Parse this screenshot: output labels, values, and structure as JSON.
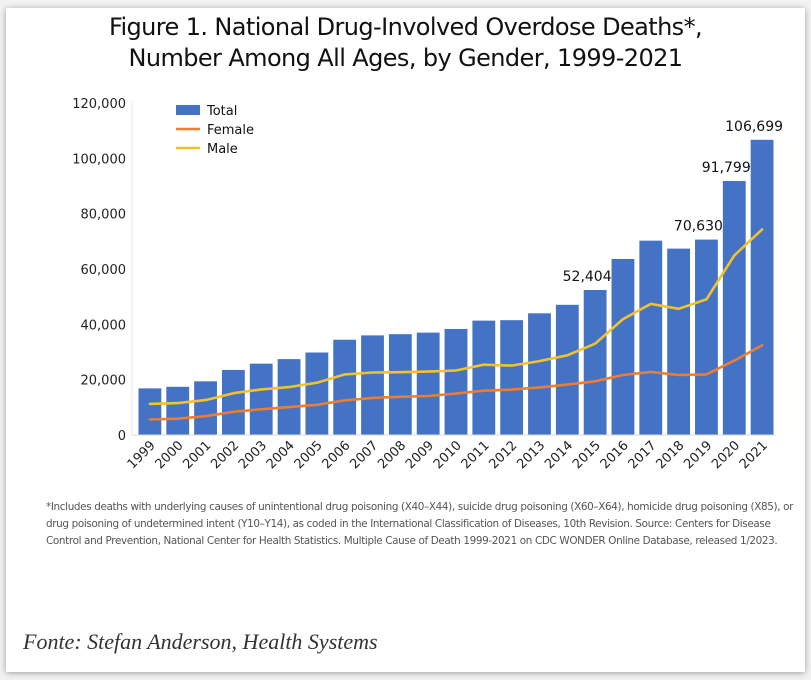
{
  "figure": {
    "title_line1": "Figure 1. National Drug-Involved Overdose Deaths*,",
    "title_line2": "Number Among All Ages, by Gender, 1999-2021",
    "footnote": "*Includes deaths with underlying causes of unintentional drug poisoning (X40–X44), suicide drug poisoning (X60–X64), homicide drug poisoning (X85), or drug poisoning of undetermined intent (Y10–Y14), as coded in the International Classification of Diseases, 10th Revision. Source: Centers for Disease Control and Prevention, National Center for Health Statistics. Multiple Cause of Death 1999-2021 on CDC WONDER Online Database, released 1/2023.",
    "source_caption": "Fonte: Stefan Anderson, Health Systems"
  },
  "chart_data": {
    "type": "bar",
    "title": "Figure 1. National Drug-Involved Overdose Deaths*, Number Among All Ages, by Gender, 1999-2021",
    "xlabel": "",
    "ylabel": "",
    "ylim": [
      0,
      120000
    ],
    "yticks": [
      0,
      20000,
      40000,
      60000,
      80000,
      100000,
      120000
    ],
    "ytick_labels": [
      "0",
      "20,000",
      "40,000",
      "60,000",
      "80,000",
      "100,000",
      "120,000"
    ],
    "grid": false,
    "legend_position": "top-left",
    "categories": [
      "1999",
      "2000",
      "2001",
      "2002",
      "2003",
      "2004",
      "2005",
      "2006",
      "2007",
      "2008",
      "2009",
      "2010",
      "2011",
      "2012",
      "2013",
      "2014",
      "2015",
      "2016",
      "2017",
      "2018",
      "2019",
      "2020",
      "2021"
    ],
    "series": [
      {
        "name": "Total",
        "kind": "bar",
        "color": "#4472c4",
        "values": [
          16849,
          17415,
          19394,
          23518,
          25785,
          27424,
          29813,
          34425,
          36010,
          36450,
          37004,
          38329,
          41340,
          41502,
          43982,
          47055,
          52404,
          63632,
          70237,
          67367,
          70630,
          91799,
          106699
        ]
      },
      {
        "name": "Female",
        "kind": "line",
        "color": "#ed7d31",
        "values": [
          5591,
          5900,
          6800,
          8400,
          9300,
          10100,
          10900,
          12500,
          13400,
          13800,
          14100,
          15000,
          16000,
          16400,
          17200,
          18200,
          19400,
          21700,
          22800,
          21700,
          21900,
          26900,
          32400
        ]
      },
      {
        "name": "Male",
        "kind": "line",
        "color": "#f2c22b",
        "values": [
          11258,
          11515,
          12600,
          15100,
          16500,
          17300,
          18900,
          21900,
          22600,
          22700,
          22900,
          23300,
          25400,
          25100,
          26700,
          28800,
          33000,
          41900,
          47400,
          45600,
          49000,
          64900,
          74300
        ]
      }
    ],
    "data_labels": [
      {
        "category": "2015",
        "series": "Total",
        "text": "52,404"
      },
      {
        "category": "2019",
        "series": "Total",
        "text": "70,630"
      },
      {
        "category": "2020",
        "series": "Total",
        "text": "91,799"
      },
      {
        "category": "2021",
        "series": "Total",
        "text": "106,699"
      }
    ]
  }
}
